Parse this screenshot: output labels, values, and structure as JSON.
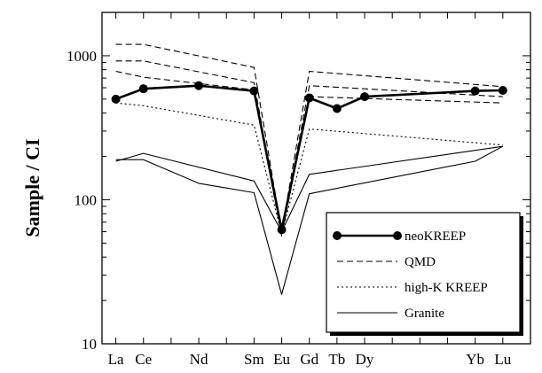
{
  "chart_data": {
    "type": "line",
    "title": "",
    "xlabel": "",
    "ylabel": "Sample / CI",
    "yscale": "log",
    "ylim": [
      10,
      2000
    ],
    "yticks": [
      10,
      100,
      1000
    ],
    "ytick_labels": [
      "10",
      "100",
      "1000"
    ],
    "categories": [
      "La",
      "Ce",
      "Nd",
      "Sm",
      "Eu",
      "Gd",
      "Tb",
      "Dy",
      "Yb",
      "Lu"
    ],
    "category_positions": [
      57,
      58,
      60,
      62,
      63,
      64,
      65,
      66,
      70,
      71
    ],
    "legend_position": "lower-right",
    "legend": [
      {
        "label": "neoKREEP",
        "style": "solid-bold-marker"
      },
      {
        "label": "QMD",
        "style": "dashed"
      },
      {
        "label": "high-K KREEP",
        "style": "dotted"
      },
      {
        "label": "Granite",
        "style": "solid"
      }
    ],
    "series": [
      {
        "name": "neoKREEP",
        "style": "solid-bold-marker",
        "color": "#000000",
        "points": [
          [
            57,
            500
          ],
          [
            58,
            590
          ],
          [
            60,
            620
          ],
          [
            62,
            570
          ],
          [
            63,
            62
          ],
          [
            64,
            510
          ],
          [
            65,
            430
          ],
          [
            66,
            520
          ],
          [
            70,
            570
          ],
          [
            71,
            575
          ]
        ]
      },
      {
        "name": "QMD",
        "style": "dashed",
        "color": "#000000",
        "points": [
          [
            57,
            1200
          ],
          [
            58,
            1200
          ],
          [
            62,
            830
          ],
          [
            63,
            60
          ],
          [
            64,
            780
          ],
          [
            71,
            610
          ]
        ]
      },
      {
        "name": "QMD",
        "style": "dashed",
        "color": "#000000",
        "points": [
          [
            57,
            920
          ],
          [
            58,
            920
          ],
          [
            62,
            650
          ],
          [
            63,
            58
          ],
          [
            64,
            620
          ],
          [
            71,
            520
          ]
        ]
      },
      {
        "name": "QMD",
        "style": "dashed",
        "color": "#000000",
        "points": [
          [
            57,
            780
          ],
          [
            58,
            710
          ],
          [
            62,
            580
          ],
          [
            63,
            56
          ],
          [
            64,
            520
          ],
          [
            71,
            470
          ]
        ]
      },
      {
        "name": "high-K KREEP",
        "style": "dotted",
        "color": "#000000",
        "points": [
          [
            57,
            470
          ],
          [
            58,
            450
          ],
          [
            62,
            330
          ],
          [
            63,
            58
          ],
          [
            64,
            310
          ],
          [
            71,
            240
          ]
        ]
      },
      {
        "name": "Granite",
        "style": "solid",
        "color": "#000000",
        "points": [
          [
            57,
            185
          ],
          [
            58,
            210
          ],
          [
            62,
            135
          ],
          [
            63,
            60
          ],
          [
            64,
            150
          ],
          [
            71,
            235
          ]
        ]
      },
      {
        "name": "Granite",
        "style": "solid",
        "color": "#000000",
        "points": [
          [
            57,
            190
          ],
          [
            58,
            190
          ],
          [
            60,
            130
          ],
          [
            62,
            112
          ],
          [
            63,
            22
          ],
          [
            64,
            110
          ],
          [
            70,
            185
          ],
          [
            71,
            235
          ]
        ]
      }
    ]
  }
}
